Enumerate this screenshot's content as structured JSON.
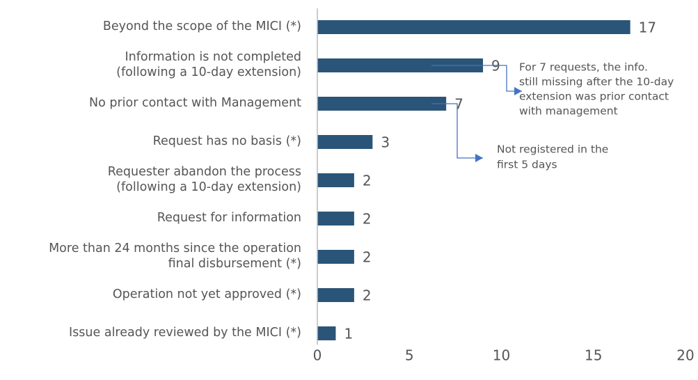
{
  "chart_data": {
    "type": "barh",
    "categories": [
      [
        "Beyond the scope of the MICI (*)"
      ],
      [
        "Information is not completed",
        "(following a 10-day extension)"
      ],
      [
        "No prior contact with Management"
      ],
      [
        "Request has no basis (*)"
      ],
      [
        "Requester abandon the process",
        "(following a 10-day extension)"
      ],
      [
        "Request for information"
      ],
      [
        "More than 24 months since the operation",
        "final disbursement (*)"
      ],
      [
        "Operation not yet approved (*)"
      ],
      [
        "Issue already reviewed by the MICI (*)"
      ]
    ],
    "values": [
      17,
      9,
      7,
      3,
      2,
      2,
      2,
      2,
      1
    ],
    "color": "#2a5578",
    "xlim": [
      0,
      20
    ],
    "xticks": [
      0,
      5,
      10,
      15,
      20
    ],
    "annotations": [
      {
        "lines": [
          "For 7 requests, the info.",
          "still missing after the 10-day",
          "extension was prior contact",
          "with management"
        ],
        "color": "#4472c4"
      },
      {
        "lines": [
          "Not registered in the",
          "first 5 days"
        ],
        "color": "#4472c4"
      }
    ]
  }
}
